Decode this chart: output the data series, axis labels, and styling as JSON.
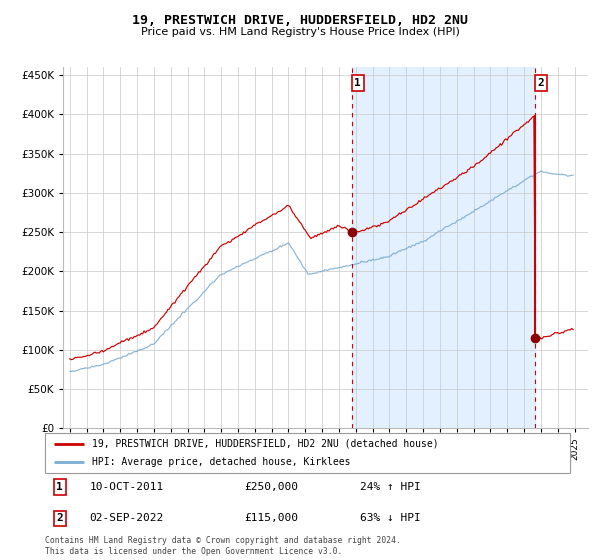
{
  "title": "19, PRESTWICH DRIVE, HUDDERSFIELD, HD2 2NU",
  "subtitle": "Price paid vs. HM Land Registry's House Price Index (HPI)",
  "legend_line1": "19, PRESTWICH DRIVE, HUDDERSFIELD, HD2 2NU (detached house)",
  "legend_line2": "HPI: Average price, detached house, Kirklees",
  "annotation1_date": "10-OCT-2011",
  "annotation1_price": 250000,
  "annotation1_hpi_pct": "24% ↑ HPI",
  "annotation2_date": "02-SEP-2022",
  "annotation2_price": 115000,
  "annotation2_hpi_pct": "63% ↓ HPI",
  "footer": "Contains HM Land Registry data © Crown copyright and database right 2024.\nThis data is licensed under the Open Government Licence v3.0.",
  "hpi_line_color": "#7aadd4",
  "property_line_color": "#cc0000",
  "annotation_dot_color": "#8b0000",
  "vline_color": "#cc0000",
  "bg_shaded_color": "#ddeeff",
  "grid_color": "#c8c8c8",
  "ylim": [
    0,
    460000
  ],
  "yticks": [
    0,
    50000,
    100000,
    150000,
    200000,
    250000,
    300000,
    350000,
    400000,
    450000
  ],
  "sale1_x": 2011.77,
  "sale2_x": 2022.67,
  "sale1_price": 250000,
  "sale2_price": 115000,
  "sale2_peak": 390000
}
